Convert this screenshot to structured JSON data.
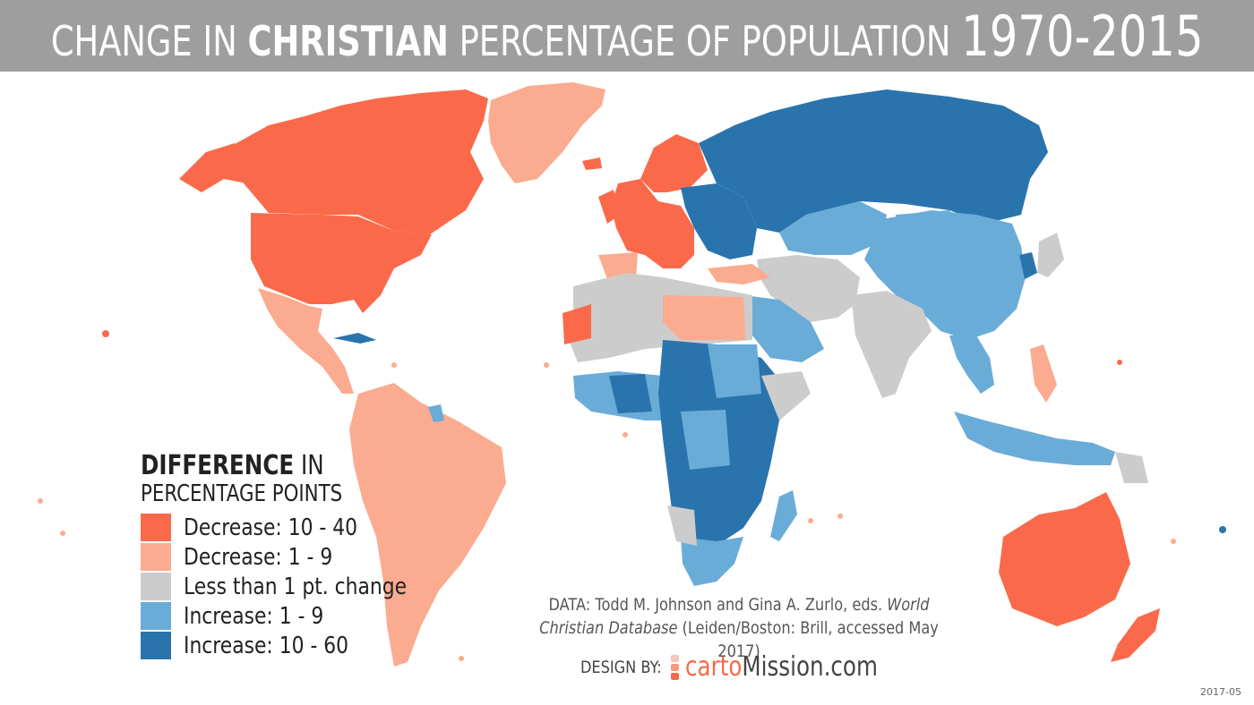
{
  "title": {
    "part1": "CHANGE IN ",
    "bold": "CHRISTIAN",
    "part2": " PERCENTAGE OF POPULATION ",
    "years": "1970-2015"
  },
  "colors": {
    "decrease_large": "#fa6a4a",
    "decrease_small": "#fbab8f",
    "no_change": "#cccccc",
    "increase_small": "#6aacd8",
    "increase_large": "#2a74ad",
    "title_bar": "#9e9e9e"
  },
  "legend": {
    "title_bold": "DIFFERENCE",
    "title_rest": " IN",
    "subtitle": "PERCENTAGE POINTS",
    "items": [
      {
        "label": "Decrease: 10 - 40",
        "color": "#fa6a4a"
      },
      {
        "label": "Decrease: 1 - 9",
        "color": "#fbab8f"
      },
      {
        "label": "Less than 1 pt. change",
        "color": "#cccccc"
      },
      {
        "label": "Increase: 1 - 9",
        "color": "#6aacd8"
      },
      {
        "label": "Increase: 10 - 60",
        "color": "#2a74ad"
      }
    ]
  },
  "source": {
    "line1_plain": "DATA: Todd M. Johnson and Gina A. Zurlo, eds. ",
    "line1_italic": "World",
    "line2_italic": "Christian Database",
    "line2_plain": " (Leiden/Boston: Brill, accessed May 2017)"
  },
  "credit": {
    "label": "DESIGN BY:",
    "brand_a": "carto",
    "brand_b": "Mission.com"
  },
  "version": "2017-05"
}
